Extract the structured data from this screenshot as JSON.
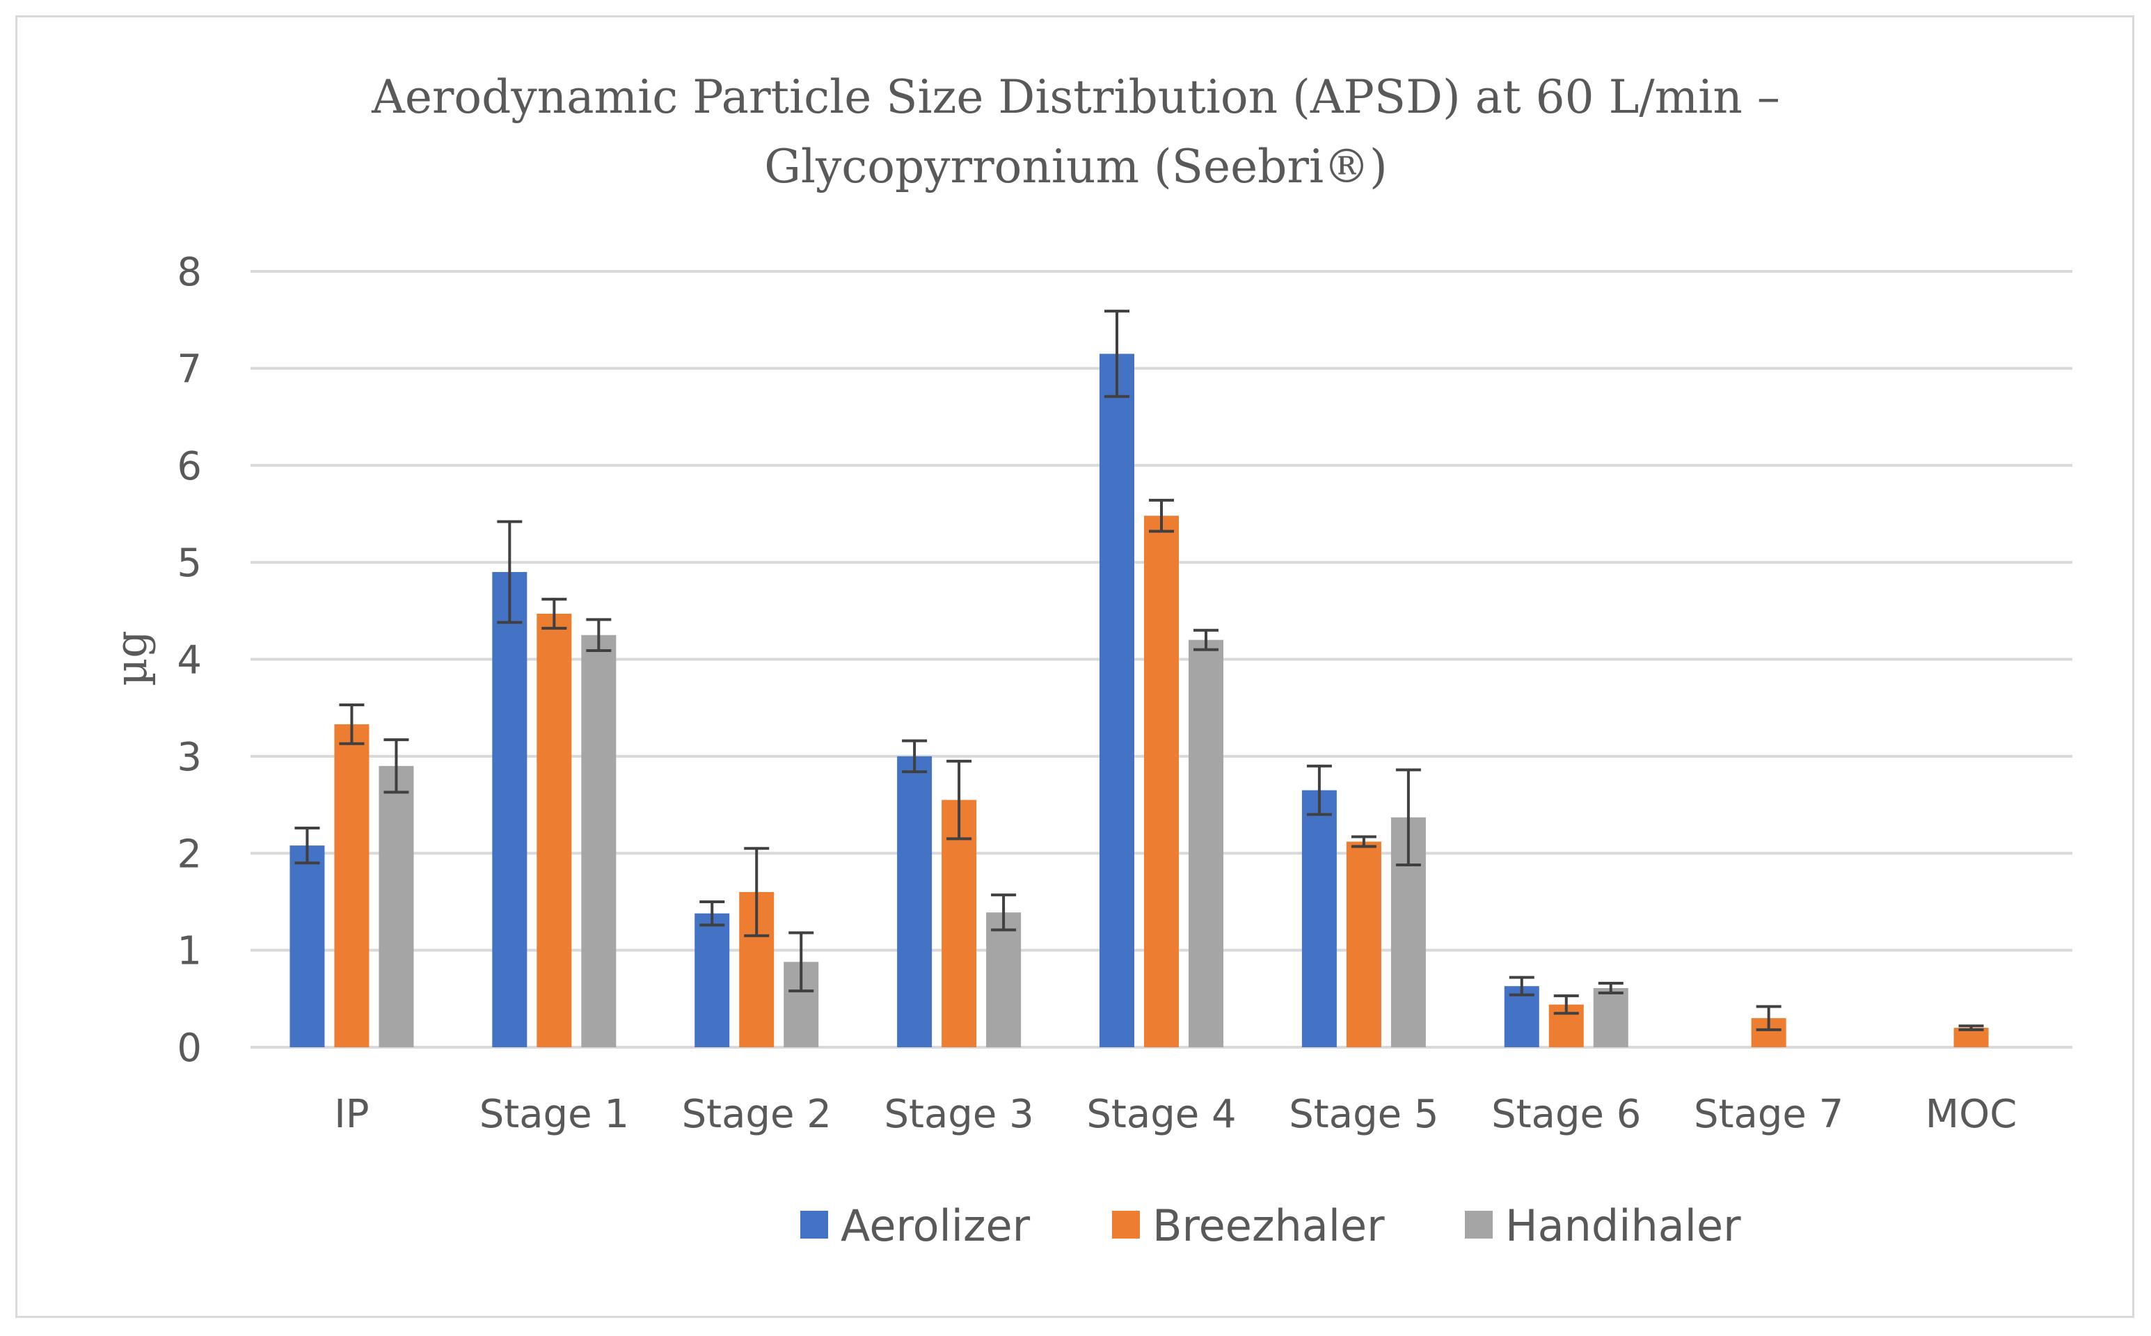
{
  "chart_data": {
    "type": "bar",
    "title_line1": "Aerodynamic Particle Size Distribution (APSD) at 60 L/min –",
    "title_line2": "Glycopyrronium (Seebri®)",
    "xlabel": "",
    "ylabel": "µg",
    "ylim": [
      0,
      8
    ],
    "yticks": [
      "0",
      "1",
      "2",
      "3",
      "4",
      "5",
      "6",
      "7",
      "8"
    ],
    "grid": true,
    "legend_position": "bottom",
    "categories": [
      "IP",
      "Stage 1",
      "Stage 2",
      "Stage 3",
      "Stage 4",
      "Stage 5",
      "Stage 6",
      "Stage 7",
      "MOC"
    ],
    "series": [
      {
        "name": "Aerolizer",
        "color": "#4472c4",
        "values": [
          2.08,
          4.9,
          1.38,
          3.0,
          7.15,
          2.65,
          0.63,
          0.0,
          0.0
        ],
        "errors": [
          0.18,
          0.52,
          0.12,
          0.16,
          0.44,
          0.25,
          0.09,
          0.0,
          0.0
        ]
      },
      {
        "name": "Breezhaler",
        "color": "#ed7d31",
        "values": [
          3.33,
          4.47,
          1.6,
          2.55,
          5.48,
          2.12,
          0.44,
          0.3,
          0.2
        ],
        "errors": [
          0.2,
          0.15,
          0.45,
          0.4,
          0.16,
          0.05,
          0.09,
          0.12,
          0.02
        ]
      },
      {
        "name": "Handihaler",
        "color": "#a5a5a5",
        "values": [
          2.9,
          4.25,
          0.88,
          1.39,
          4.2,
          2.37,
          0.61,
          0.0,
          0.0
        ],
        "errors": [
          0.27,
          0.16,
          0.3,
          0.18,
          0.1,
          0.49,
          0.05,
          0.0,
          0.0
        ]
      }
    ]
  }
}
